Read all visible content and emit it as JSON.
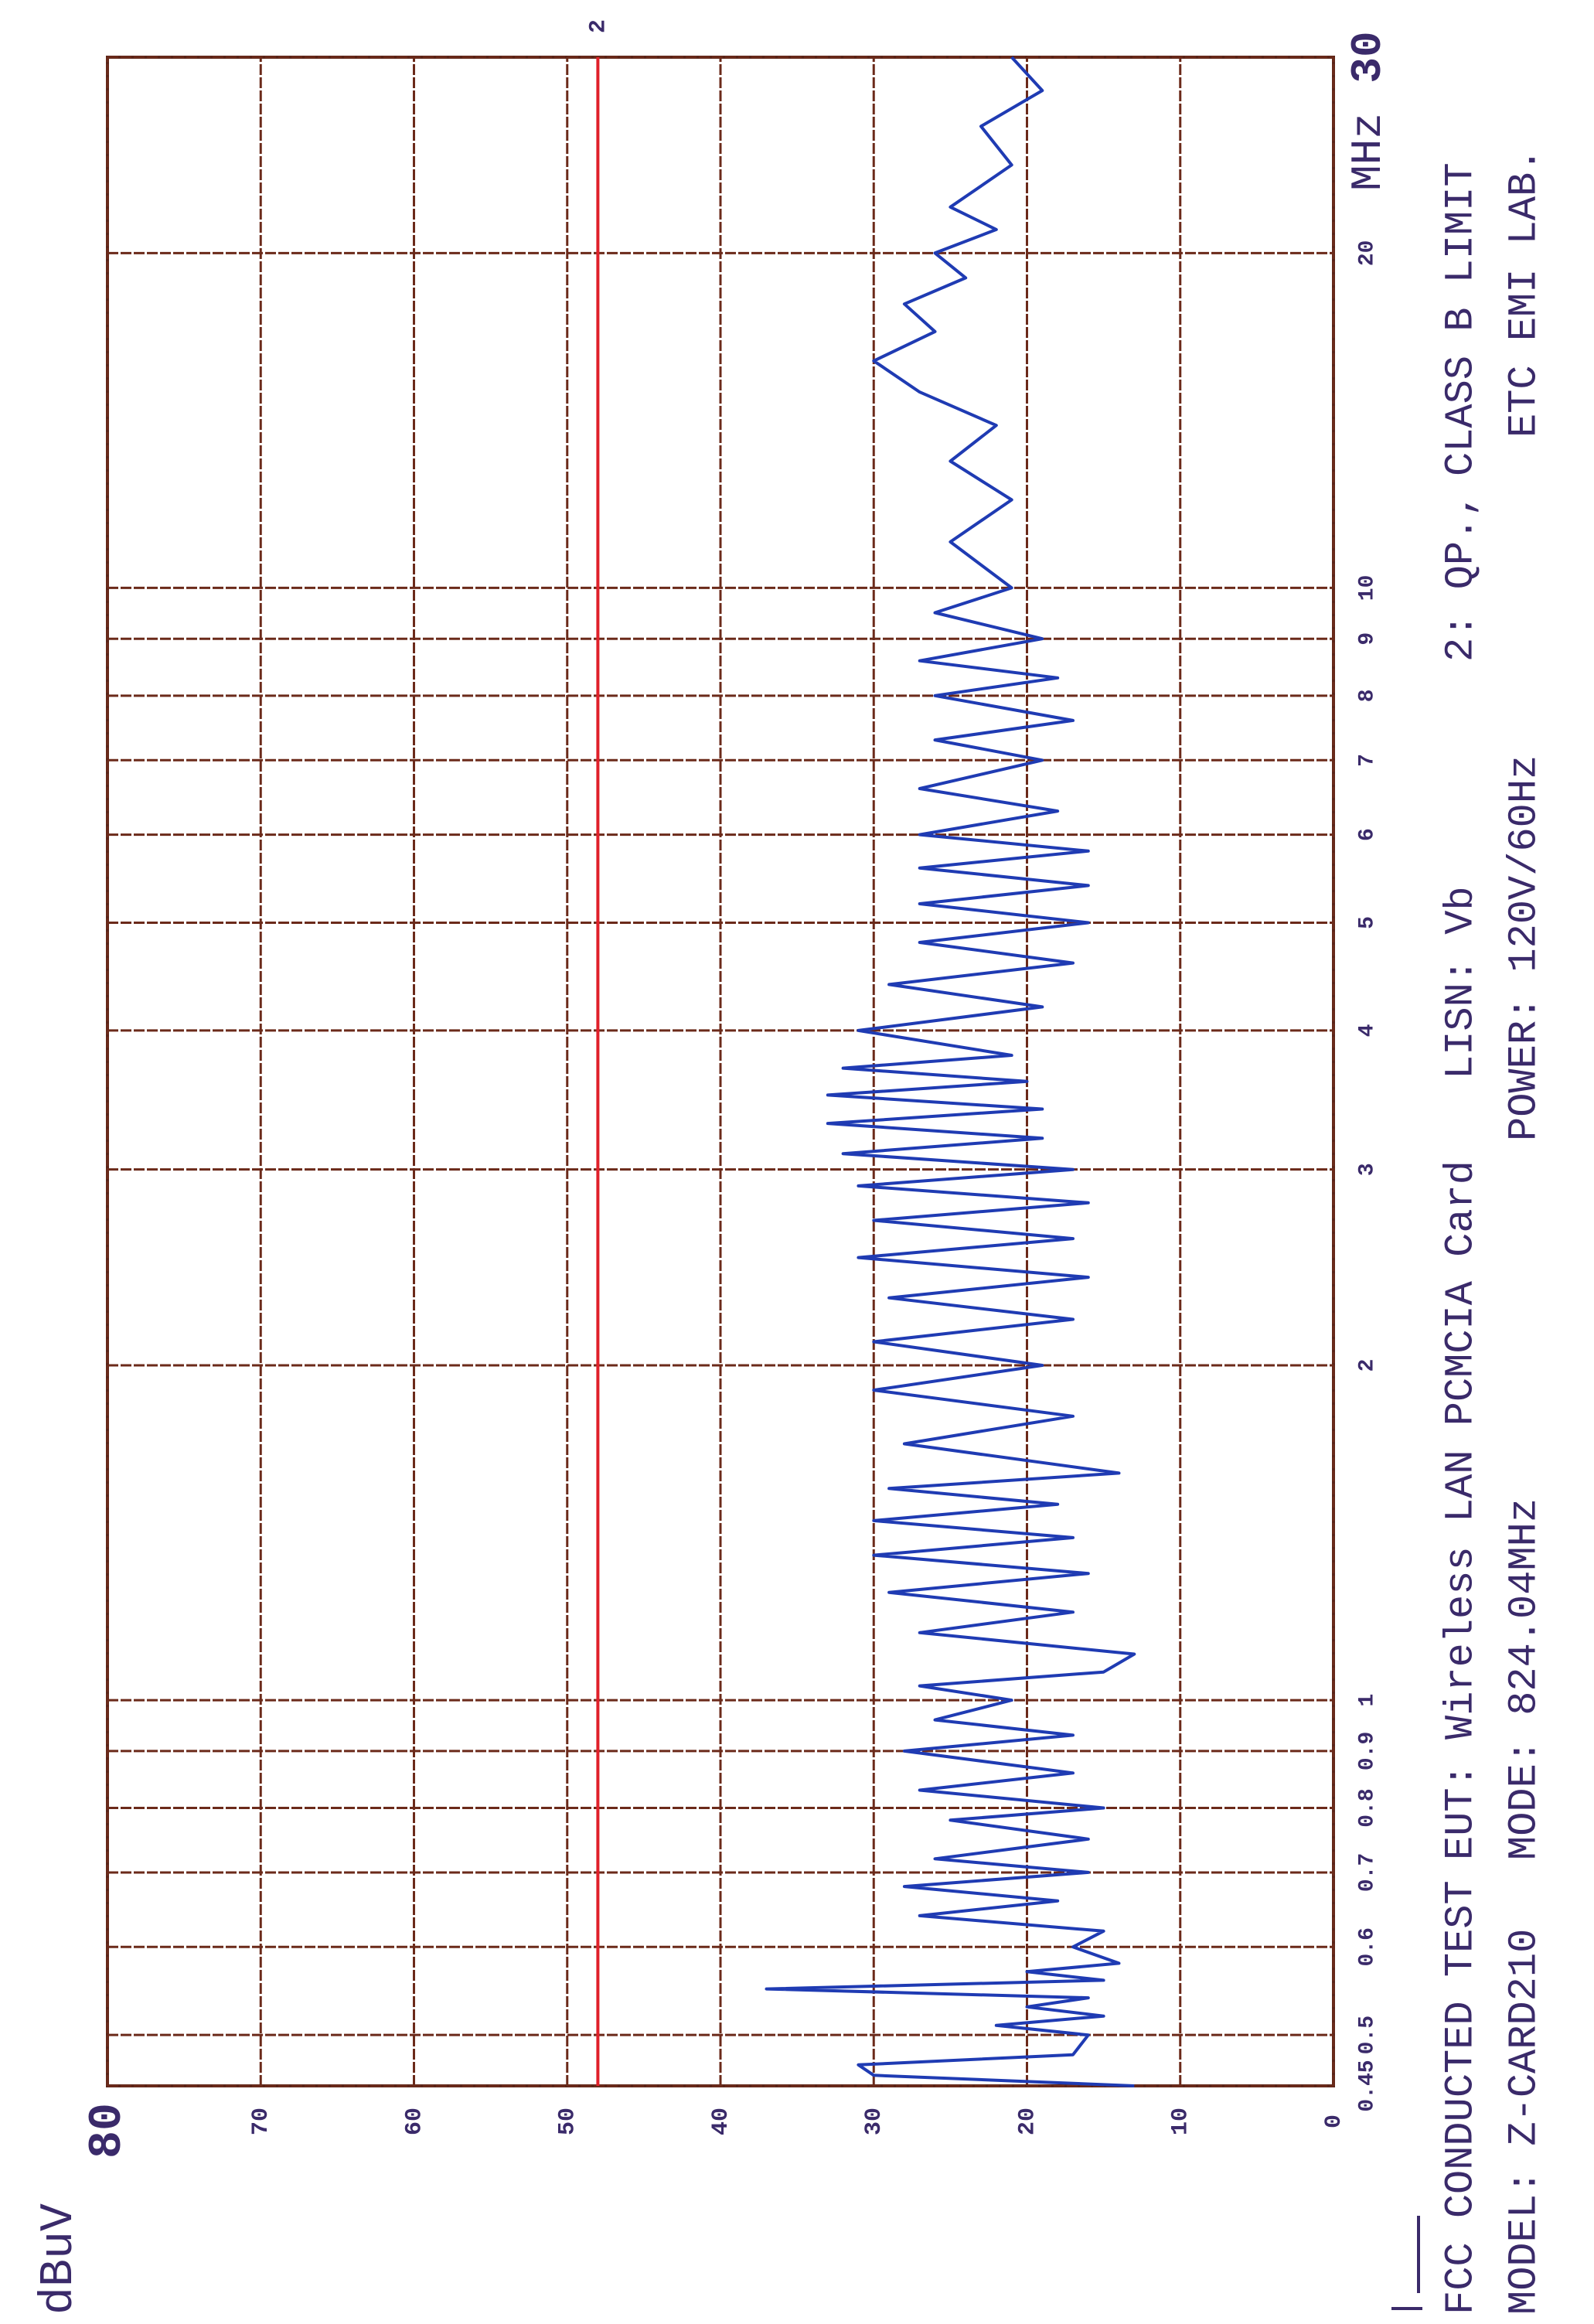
{
  "chart_data": {
    "type": "line",
    "y_label": "dBuV",
    "x_label": "MHz",
    "log_x": true,
    "grid": true,
    "xlim": [
      0.45,
      30
    ],
    "xticks": [
      0.45,
      0.5,
      0.6,
      0.7,
      0.8,
      0.9,
      1,
      2,
      3,
      4,
      5,
      6,
      7,
      8,
      9,
      10,
      20,
      30
    ],
    "ylim": [
      0,
      80
    ],
    "yticks": [
      0,
      10,
      20,
      30,
      40,
      50,
      60,
      70,
      80
    ],
    "limit": {
      "name": "2",
      "value": 48,
      "color": "#e0202a"
    },
    "x": [
      0.45,
      0.46,
      0.47,
      0.48,
      0.5,
      0.51,
      0.52,
      0.53,
      0.54,
      0.55,
      0.56,
      0.57,
      0.58,
      0.6,
      0.62,
      0.64,
      0.66,
      0.68,
      0.7,
      0.72,
      0.75,
      0.78,
      0.8,
      0.83,
      0.86,
      0.9,
      0.93,
      0.96,
      1.0,
      1.03,
      1.06,
      1.1,
      1.15,
      1.2,
      1.25,
      1.3,
      1.35,
      1.4,
      1.45,
      1.5,
      1.55,
      1.6,
      1.7,
      1.8,
      1.9,
      2.0,
      2.1,
      2.2,
      2.3,
      2.4,
      2.5,
      2.6,
      2.7,
      2.8,
      2.9,
      3.0,
      3.1,
      3.2,
      3.3,
      3.4,
      3.5,
      3.6,
      3.7,
      3.8,
      4.0,
      4.2,
      4.4,
      4.6,
      4.8,
      5.0,
      5.2,
      5.4,
      5.6,
      5.8,
      6.0,
      6.3,
      6.6,
      7.0,
      7.3,
      7.6,
      8.0,
      8.3,
      8.6,
      9.0,
      9.5,
      10,
      11,
      12,
      13,
      14,
      15,
      16,
      17,
      18,
      19,
      20,
      21,
      22,
      24,
      26,
      28,
      30
    ],
    "series": [
      {
        "color": "#1f3bb3",
        "values": [
          13,
          30,
          31,
          17,
          16,
          22,
          15,
          20,
          16,
          37,
          15,
          20,
          14,
          17,
          15,
          27,
          18,
          28,
          16,
          26,
          16,
          25,
          15,
          27,
          17,
          28,
          17,
          26,
          21,
          27,
          15,
          13,
          27,
          17,
          29,
          16,
          30,
          17,
          30,
          18,
          29,
          14,
          28,
          17,
          30,
          19,
          30,
          17,
          29,
          16,
          31,
          17,
          30,
          16,
          31,
          17,
          32,
          19,
          33,
          19,
          33,
          20,
          32,
          21,
          31,
          19,
          29,
          17,
          27,
          16,
          27,
          16,
          27,
          16,
          27,
          18,
          27,
          19,
          26,
          17,
          26,
          18,
          27,
          19,
          26,
          21,
          25,
          21,
          25,
          22,
          27,
          30,
          26,
          28,
          24,
          26,
          22,
          25,
          21,
          23,
          19,
          21
        ]
      }
    ],
    "annotations": [
      "FCC CONDUCTED TEST",
      "MODEL: Z-CARD210",
      "EUT: Wireless LAN PCMCIA Card",
      "MODE: 824.04MHz",
      "LISN: Vb",
      "POWER: 120V/60Hz",
      "2: QP.,",
      "CLASS B LIMIT",
      "ETC EMI LAB."
    ]
  }
}
